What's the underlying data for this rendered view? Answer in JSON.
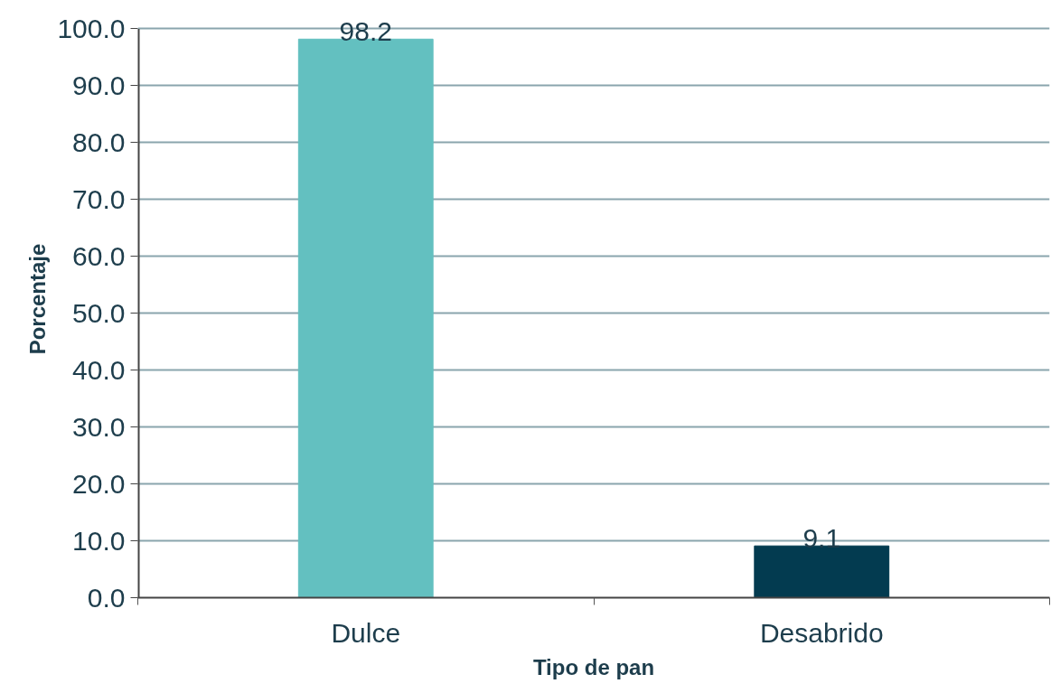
{
  "chart_data": {
    "type": "bar",
    "xlabel": "Tipo de pan",
    "ylabel": "Porcentaje",
    "categories": [
      "Dulce",
      "Desabrido"
    ],
    "values": [
      98.2,
      9.1
    ],
    "colors": [
      "#63c0c0",
      "#033b50"
    ],
    "ylim": [
      0,
      100
    ],
    "yticks": [
      {
        "value": 0,
        "label": "0.0"
      },
      {
        "value": 10,
        "label": "10.0"
      },
      {
        "value": 20,
        "label": "20.0"
      },
      {
        "value": 30,
        "label": "30.0"
      },
      {
        "value": 40,
        "label": "40.0"
      },
      {
        "value": 50,
        "label": "50.0"
      },
      {
        "value": 60,
        "label": "60.0"
      },
      {
        "value": 70,
        "label": "70.0"
      },
      {
        "value": 80,
        "label": "80.0"
      },
      {
        "value": 90,
        "label": "90.0"
      },
      {
        "value": 100,
        "label": "100.0"
      }
    ],
    "grid": "y",
    "data_labels": true
  }
}
